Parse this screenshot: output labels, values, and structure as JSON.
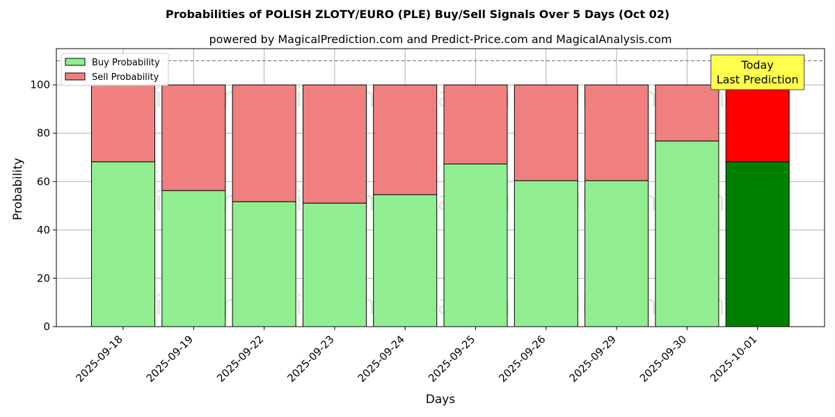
{
  "chart_data": {
    "type": "bar",
    "stacked": true,
    "title": "Probabilities of POLISH ZLOTY/EURO (PLE) Buy/Sell Signals Over 5 Days (Oct 02)",
    "subtitle": "powered by MagicalPrediction.com and Predict-Price.com and MagicalAnalysis.com",
    "xlabel": "Days",
    "ylabel": "Probability",
    "ylim": [
      0,
      115
    ],
    "yticks": [
      0,
      20,
      40,
      60,
      80,
      100
    ],
    "grid": true,
    "legend_position": "top-left",
    "reference_line": {
      "y": 110,
      "style": "dashed"
    },
    "categories": [
      "2025-09-18",
      "2025-09-19",
      "2025-09-22",
      "2025-09-23",
      "2025-09-24",
      "2025-09-25",
      "2025-09-26",
      "2025-09-29",
      "2025-09-30",
      "2025-10-01"
    ],
    "series": [
      {
        "name": "Buy Probability",
        "color": "#90ee90",
        "highlight_color": "#008000",
        "values": [
          68.2,
          56.3,
          51.7,
          51.1,
          54.6,
          67.3,
          60.4,
          60.4,
          76.8,
          68.2
        ]
      },
      {
        "name": "Sell Probability",
        "color": "#f08080",
        "highlight_color": "#ff0000",
        "values": [
          31.8,
          43.7,
          48.3,
          48.9,
          45.4,
          32.7,
          39.6,
          39.6,
          23.2,
          31.8
        ]
      }
    ],
    "highlight_index": 9,
    "annotation": {
      "lines": [
        "Today",
        "Last Prediction"
      ],
      "background": "#ffff4d"
    },
    "watermarks": [
      "MagicalAnalysis.com",
      "MagicalPrediction.com"
    ]
  }
}
